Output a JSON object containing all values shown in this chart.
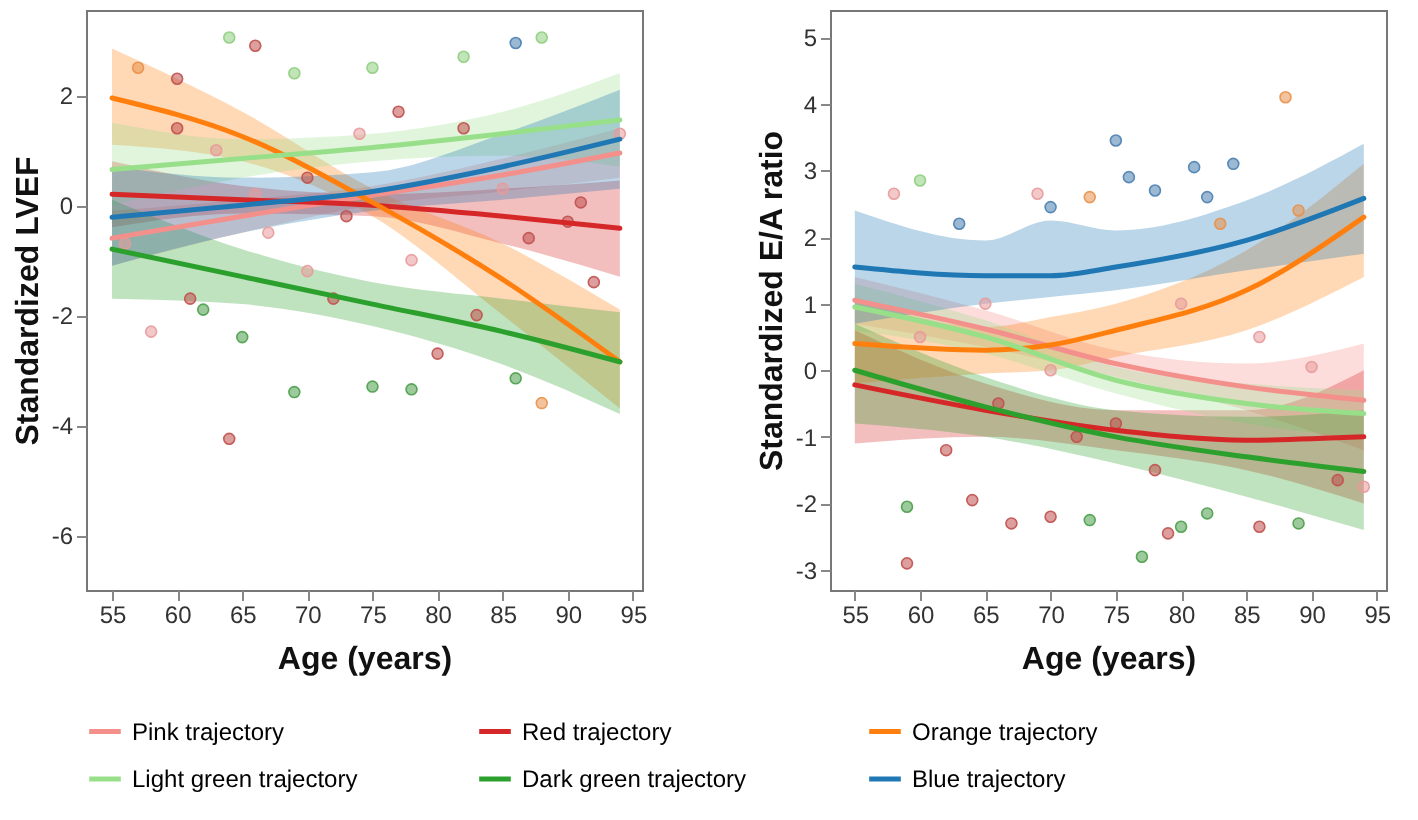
{
  "chart_data": [
    {
      "type": "line",
      "xlabel": "Age (years)",
      "ylabel": "Standardized LVEF",
      "xlim": [
        53,
        95.7
      ],
      "ylim": [
        -7,
        3.55
      ],
      "xticks": [
        55,
        60,
        65,
        70,
        75,
        80,
        85,
        90,
        95
      ],
      "yticks": [
        -6,
        -4,
        -2,
        0,
        2
      ],
      "grid": false,
      "legend": "bottom",
      "series": [
        {
          "type": "scatter",
          "marker": "circle",
          "x": [
            57,
            60,
            64,
            66,
            69,
            75,
            82,
            86,
            88,
            60,
            63,
            67,
            70,
            72,
            74,
            78,
            80,
            64,
            69,
            75,
            78,
            86,
            88,
            62,
            65,
            83,
            90,
            92,
            94,
            91,
            85,
            58,
            61,
            77,
            82,
            87,
            70,
            66,
            73,
            56
          ],
          "values": [
            2.5,
            2.3,
            3.05,
            2.9,
            2.4,
            2.5,
            2.7,
            2.95,
            3.05,
            1.4,
            1.0,
            -0.5,
            0.5,
            -1.7,
            1.3,
            -1.0,
            -2.7,
            -4.25,
            -3.4,
            -3.3,
            -3.35,
            -3.15,
            -3.6,
            -1.9,
            -2.4,
            -2.0,
            -0.3,
            -1.4,
            1.3,
            0.05,
            0.3,
            -2.3,
            -1.7,
            1.7,
            1.4,
            -0.6,
            -1.2,
            0.2,
            -0.2,
            -0.7
          ],
          "colors": [
            "#e8914a",
            "#c0504d",
            "#8fce7f",
            "#c0504d",
            "#8fce7f",
            "#8fce7f",
            "#8fce7f",
            "#4a7fb0",
            "#8fce7f",
            "#c0504d",
            "#e89a9a",
            "#e89a9a",
            "#c0504d",
            "#c0504d",
            "#e89a9a",
            "#e89a9a",
            "#c0504d",
            "#c0504d",
            "#4a9e4a",
            "#4a9e4a",
            "#4a9e4a",
            "#4a9e4a",
            "#e8914a",
            "#4a9e4a",
            "#4a9e4a",
            "#c0504d",
            "#c0504d",
            "#c0504d",
            "#e89a9a",
            "#c0504d",
            "#e89a9a",
            "#e89a9a",
            "#c0504d",
            "#c0504d",
            "#c0504d",
            "#c0504d",
            "#e89a9a",
            "#e89a9a",
            "#c0504d",
            "#e89a9a"
          ]
        },
        {
          "type": "line",
          "name": "Pink trajectory",
          "color": "#f4908c",
          "x": [
            55,
            65,
            75,
            85,
            94
          ],
          "values": [
            -0.6,
            -0.2,
            0.18,
            0.55,
            0.95
          ],
          "lower": [
            -1.1,
            -0.5,
            0.0,
            0.25,
            0.5
          ],
          "upper": [
            -0.1,
            0.1,
            0.35,
            0.85,
            1.4
          ]
        },
        {
          "type": "line",
          "name": "Red trajectory",
          "color": "#d62728",
          "x": [
            55,
            65,
            75,
            85,
            94
          ],
          "values": [
            0.2,
            0.1,
            0.0,
            -0.2,
            -0.42
          ],
          "lower": [
            -0.4,
            -0.15,
            -0.2,
            -0.7,
            -1.3
          ],
          "upper": [
            0.8,
            0.35,
            0.2,
            0.3,
            0.45
          ]
        },
        {
          "type": "line",
          "name": "Orange trajectory",
          "color": "#ff7f0e",
          "x": [
            55,
            65,
            75,
            85,
            94
          ],
          "values": [
            1.95,
            1.25,
            0.05,
            -1.35,
            -2.85
          ],
          "lower": [
            1.1,
            0.8,
            -0.2,
            -2.0,
            -3.7
          ],
          "upper": [
            2.85,
            1.7,
            0.3,
            -0.7,
            -1.9
          ]
        },
        {
          "type": "line",
          "name": "Light green trajectory",
          "color": "#98df8a",
          "x": [
            55,
            65,
            75,
            85,
            94
          ],
          "values": [
            0.65,
            0.85,
            1.05,
            1.3,
            1.55
          ],
          "lower": [
            0.0,
            0.5,
            0.8,
            0.9,
            0.7
          ],
          "upper": [
            1.5,
            1.2,
            1.3,
            1.7,
            2.4
          ]
        },
        {
          "type": "line",
          "name": "Dark green trajectory",
          "color": "#2ca02c",
          "x": [
            55,
            65,
            75,
            85,
            94
          ],
          "values": [
            -0.8,
            -1.3,
            -1.8,
            -2.3,
            -2.85
          ],
          "lower": [
            -1.7,
            -1.8,
            -2.2,
            -2.9,
            -3.8
          ],
          "upper": [
            0.1,
            -0.8,
            -1.4,
            -1.7,
            -1.95
          ]
        },
        {
          "type": "line",
          "name": "Blue trajectory",
          "color": "#1f77b4",
          "x": [
            55,
            65,
            75,
            85,
            94
          ],
          "values": [
            -0.22,
            0.0,
            0.25,
            0.7,
            1.2
          ],
          "lower": [
            -1.1,
            -0.5,
            -0.1,
            0.1,
            0.3
          ],
          "upper": [
            0.7,
            0.5,
            0.6,
            1.3,
            2.1
          ]
        }
      ]
    },
    {
      "type": "line",
      "xlabel": "Age (years)",
      "ylabel": "Standardized E/A ratio",
      "xlim": [
        53.1,
        95.7
      ],
      "ylim": [
        -3.3,
        5.41
      ],
      "xticks": [
        55,
        60,
        65,
        70,
        75,
        80,
        85,
        90,
        95
      ],
      "yticks": [
        -3,
        -2,
        -1,
        0,
        1,
        2,
        3,
        4,
        5
      ],
      "grid": false,
      "legend": "bottom",
      "series": [
        {
          "type": "scatter",
          "marker": "circle",
          "x": [
            59,
            60,
            58,
            63,
            69,
            70,
            73,
            75,
            76,
            78,
            81,
            82,
            84,
            88,
            89,
            59,
            62,
            64,
            67,
            70,
            73,
            77,
            79,
            80,
            82,
            86,
            89,
            92,
            94,
            90,
            86,
            65,
            70,
            75,
            60,
            80,
            83,
            72,
            66,
            78
          ],
          "values": [
            -2.9,
            2.85,
            2.65,
            2.2,
            2.65,
            2.45,
            2.6,
            3.45,
            2.9,
            2.7,
            3.05,
            2.6,
            3.1,
            4.1,
            2.4,
            -2.05,
            -1.2,
            -1.95,
            -2.3,
            -2.2,
            -2.25,
            -2.8,
            -2.45,
            -2.35,
            -2.15,
            -2.35,
            -2.3,
            -1.65,
            -1.75,
            0.05,
            0.5,
            1.0,
            0.0,
            -0.8,
            0.5,
            1.0,
            2.2,
            -1.0,
            -0.5,
            -1.5
          ],
          "colors": [
            "#c0504d",
            "#8fce7f",
            "#e89a9a",
            "#4a7fb0",
            "#e89a9a",
            "#4a7fb0",
            "#e8914a",
            "#4a7fb0",
            "#4a7fb0",
            "#4a7fb0",
            "#4a7fb0",
            "#4a7fb0",
            "#4a7fb0",
            "#e8914a",
            "#e8914a",
            "#4a9e4a",
            "#c0504d",
            "#c0504d",
            "#c0504d",
            "#c0504d",
            "#4a9e4a",
            "#4a9e4a",
            "#c0504d",
            "#4a9e4a",
            "#4a9e4a",
            "#c0504d",
            "#4a9e4a",
            "#c0504d",
            "#e89a9a",
            "#e89a9a",
            "#e89a9a",
            "#e89a9a",
            "#e89a9a",
            "#c0504d",
            "#e89a9a",
            "#e89a9a",
            "#e8914a",
            "#c0504d",
            "#c0504d",
            "#c0504d"
          ]
        },
        {
          "type": "line",
          "name": "Pink trajectory",
          "color": "#f4908c",
          "x": [
            55,
            65,
            75,
            85,
            94
          ],
          "values": [
            1.05,
            0.62,
            0.1,
            -0.25,
            -0.45
          ],
          "lower": [
            0.7,
            0.35,
            -0.1,
            -0.6,
            -1.2
          ],
          "upper": [
            1.4,
            0.9,
            0.3,
            0.1,
            0.4
          ]
        },
        {
          "type": "line",
          "name": "Red trajectory",
          "color": "#d62728",
          "x": [
            55,
            65,
            75,
            85,
            94
          ],
          "values": [
            -0.22,
            -0.6,
            -0.9,
            -1.05,
            -1.0
          ],
          "lower": [
            -1.1,
            -1.0,
            -1.2,
            -1.5,
            -2.0
          ],
          "upper": [
            0.6,
            -0.2,
            -0.6,
            -0.6,
            0.0
          ]
        },
        {
          "type": "line",
          "name": "Orange trajectory",
          "color": "#ff7f0e",
          "x": [
            55,
            65,
            70,
            75,
            85,
            94
          ],
          "values": [
            0.4,
            0.3,
            0.38,
            0.6,
            1.2,
            2.3
          ],
          "lower": [
            -0.2,
            -0.05,
            0.0,
            0.2,
            0.6,
            1.4
          ],
          "upper": [
            1.1,
            0.65,
            0.8,
            1.0,
            1.8,
            3.1
          ]
        },
        {
          "type": "line",
          "name": "Light green trajectory",
          "color": "#98df8a",
          "x": [
            55,
            65,
            75,
            85,
            94
          ],
          "values": [
            0.95,
            0.5,
            -0.15,
            -0.5,
            -0.65
          ],
          "lower": [
            0.6,
            0.25,
            -0.35,
            -0.8,
            -1.0
          ],
          "upper": [
            1.3,
            0.75,
            0.05,
            -0.2,
            -0.3
          ]
        },
        {
          "type": "line",
          "name": "Dark green trajectory",
          "color": "#2ca02c",
          "x": [
            55,
            65,
            75,
            85,
            94
          ],
          "values": [
            0.0,
            -0.55,
            -1.0,
            -1.3,
            -1.52
          ],
          "lower": [
            -0.8,
            -1.0,
            -1.4,
            -1.9,
            -2.4
          ],
          "upper": [
            0.7,
            -0.1,
            -0.6,
            -0.7,
            -0.6
          ]
        },
        {
          "type": "line",
          "name": "Blue trajectory",
          "color": "#1f77b4",
          "x": [
            55,
            65,
            70,
            75,
            85,
            94
          ],
          "values": [
            1.55,
            1.42,
            1.42,
            1.55,
            1.95,
            2.58
          ],
          "lower": [
            0.7,
            1.0,
            1.1,
            1.2,
            1.5,
            1.75
          ],
          "upper": [
            2.4,
            1.95,
            2.25,
            2.1,
            2.55,
            3.4
          ]
        }
      ]
    }
  ]
}
